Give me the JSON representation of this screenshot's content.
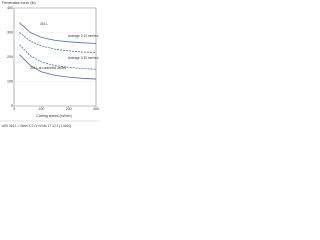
{
  "chart_data": {
    "type": "line",
    "y_label": "Penetration force (lb)",
    "x_label": "Cutting speed (m/min)",
    "x": [
      20,
      60,
      100,
      150,
      200,
      250,
      300
    ],
    "xlim": [
      0,
      300
    ],
    "xticks": [
      0,
      100,
      200,
      300
    ],
    "ylim": [
      0,
      400
    ],
    "yticks": [
      0,
      100,
      200,
      300,
      400
    ],
    "series": [
      {
        "color": "#4a6fa5",
        "dash": false,
        "values": [
          340,
          300,
          280,
          268,
          262,
          258,
          255
        ]
      },
      {
        "color": "#4a6fa5",
        "dash": true,
        "values": [
          300,
          265,
          245,
          232,
          225,
          220,
          218
        ]
      },
      {
        "color": "#4a6fa5",
        "dash": true,
        "values": [
          250,
          205,
          180,
          165,
          158,
          153,
          150
        ]
      },
      {
        "color": "#4a6fa5",
        "dash": false,
        "values": [
          210,
          165,
          140,
          125,
          118,
          113,
          110
        ]
      }
    ],
    "annotations": [
      "316 L",
      "Average 0.10 mm/rev",
      "316 L at controlled oxides",
      "Average 0.30 mm/rev"
    ],
    "caption": "AISI 316 L = Steel X 2 Cr Ni Mo 17 12 2 (1.4404)"
  }
}
